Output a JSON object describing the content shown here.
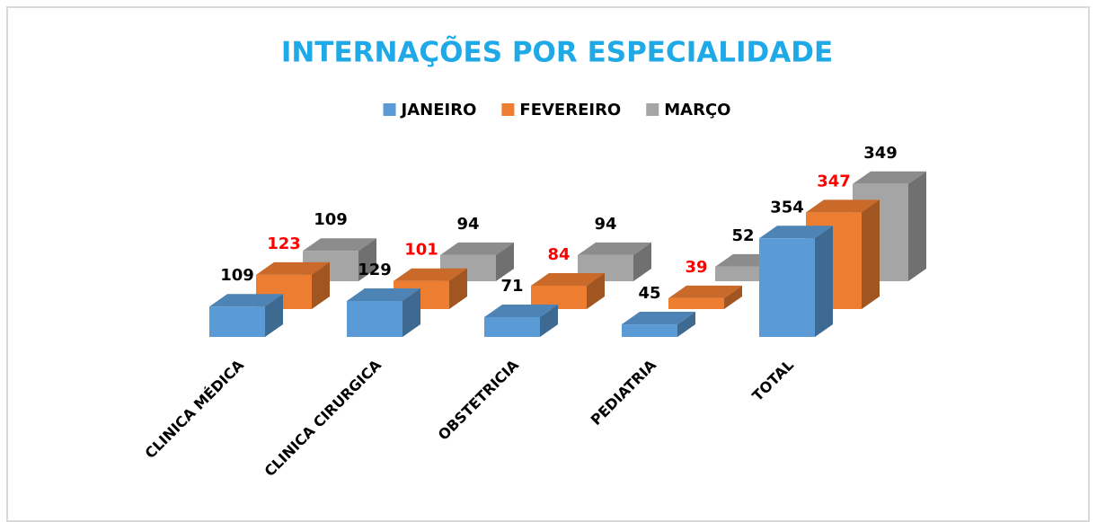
{
  "chart_data": {
    "type": "bar3d",
    "title": "INTERNAÇÕES POR ESPECIALIDADE",
    "categories": [
      "CLINICA MÉDICA",
      "CLINICA CIRURGICA",
      "OBSTETRICIA",
      "PEDIATRIA",
      "TOTAL"
    ],
    "series": [
      {
        "name": "JANEIRO",
        "color": "#5b9bd5",
        "label_color": "#000000",
        "values": [
          109,
          129,
          71,
          45,
          354
        ]
      },
      {
        "name": "FEVEREIRO",
        "color": "#ed7d31",
        "label_color": "#ff0000",
        "values": [
          123,
          101,
          84,
          39,
          347
        ]
      },
      {
        "name": "MARÇO",
        "color": "#a5a5a5",
        "label_color": "#000000",
        "values": [
          109,
          94,
          94,
          52,
          349
        ]
      }
    ],
    "legend": "top",
    "title_color": "#1fa9e6"
  }
}
